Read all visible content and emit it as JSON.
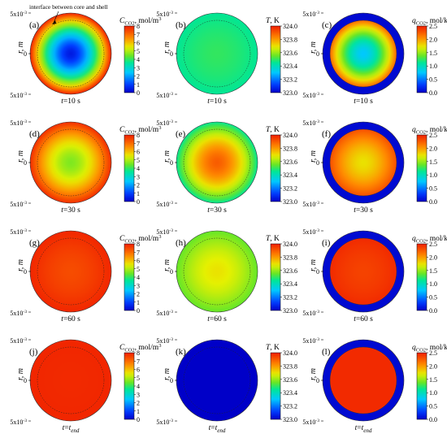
{
  "chart_data": {
    "type": "heatmap",
    "row_times": [
      "t=10 s",
      "t=30 s",
      "t=60 s",
      "t=t_end"
    ],
    "annotation": "interface between core and shell",
    "tick_r_top": "5x10",
    "tick_r_mid": "0",
    "tick_r_bot": "5x10",
    "tick_exp": "-3",
    "ylabel": "r, m",
    "colorbars": [
      {
        "id": "C",
        "label_main": "C",
        "label_sub": "CO2",
        "label_unit": ", mol/m",
        "label_exp": "3",
        "ticks": [
          "8",
          "7",
          "6",
          "5",
          "4",
          "3",
          "2",
          "1",
          "0"
        ],
        "min": 0,
        "max": 8
      },
      {
        "id": "T",
        "label_main": "T",
        "label_sub": "",
        "label_unit": ", K",
        "label_exp": "",
        "ticks": [
          "324.0",
          "323.8",
          "323.6",
          "323.4",
          "323.2",
          "323.0"
        ],
        "min": 323.0,
        "max": 324.0
      },
      {
        "id": "q",
        "label_main": "q",
        "label_sub": "CO2",
        "label_unit": ", mol/kg",
        "label_exp": "",
        "ticks": [
          "2.5",
          "2.0",
          "1.5",
          "1.0",
          "0.5",
          "0.0"
        ],
        "min": 0.0,
        "max": 2.5
      }
    ],
    "panels": [
      {
        "label": "(a)",
        "var": "C",
        "center": 0.4,
        "edge": 8.0,
        "core_fraction": 1.0
      },
      {
        "label": "(b)",
        "var": "T",
        "center": 323.5,
        "edge": 323.45,
        "core_fraction": 1.0
      },
      {
        "label": "(c)",
        "var": "q",
        "center": 0.75,
        "edge": 2.2,
        "shell_value": 0.05,
        "core_fraction": 0.82
      },
      {
        "label": "(d)",
        "var": "C",
        "center": 4.6,
        "edge": 7.8,
        "core_fraction": 1.0
      },
      {
        "label": "(e)",
        "var": "T",
        "center": 323.9,
        "edge": 323.45,
        "core_fraction": 1.0
      },
      {
        "label": "(f)",
        "var": "q",
        "center": 1.75,
        "edge": 2.3,
        "shell_value": 0.05,
        "core_fraction": 0.82
      },
      {
        "label": "(g)",
        "var": "C",
        "center": 7.4,
        "edge": 7.9,
        "core_fraction": 1.0
      },
      {
        "label": "(h)",
        "var": "T",
        "center": 323.7,
        "edge": 323.55,
        "core_fraction": 1.0
      },
      {
        "label": "(i)",
        "var": "q",
        "center": 2.35,
        "edge": 2.45,
        "shell_value": 0.05,
        "core_fraction": 0.82
      },
      {
        "label": "(j)",
        "var": "C",
        "center": 7.85,
        "edge": 7.9,
        "core_fraction": 1.0
      },
      {
        "label": "(k)",
        "var": "T",
        "center": 323.0,
        "edge": 323.0,
        "core_fraction": 1.0
      },
      {
        "label": "(l)",
        "var": "q",
        "center": 2.45,
        "edge": 2.45,
        "shell_value": 0.05,
        "core_fraction": 0.82
      }
    ]
  }
}
